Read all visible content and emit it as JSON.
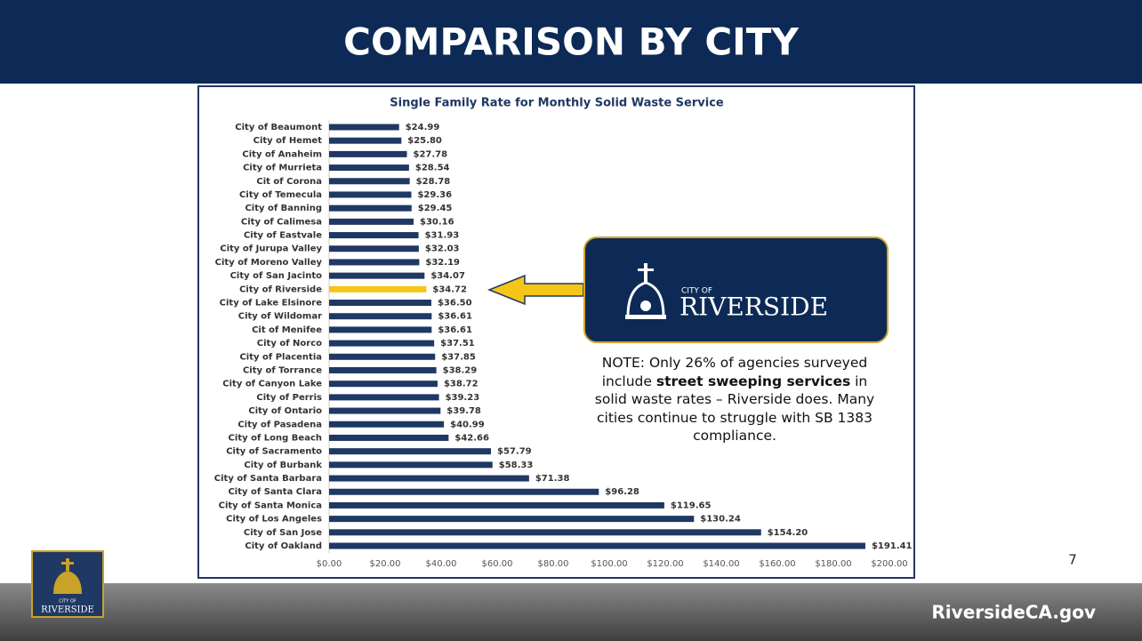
{
  "header": {
    "title": "COMPARISON BY CITY"
  },
  "chart_data": {
    "type": "barh",
    "title": "Single Family Rate for Monthly Solid Waste Service",
    "categories": [
      "City of Beaumont",
      "City of Hemet",
      "City of Anaheim",
      "City of Murrieta",
      "Cit of Corona",
      "City of Temecula",
      "City of Banning",
      "City of Calimesa",
      "City of Eastvale",
      "City of Jurupa Valley",
      "City of Moreno Valley",
      "City of San Jacinto",
      "City of Riverside",
      "City of Lake Elsinore",
      "City of Wildomar",
      "Cit of Menifee",
      "City of Norco",
      "City of Placentia",
      "City of Torrance",
      "City of Canyon Lake",
      "City of Perris",
      "City of Ontario",
      "City of Pasadena",
      "City of Long Beach",
      "City of Sacramento",
      "City of Burbank",
      "City of Santa Barbara",
      "City of Santa Clara",
      "City of Santa Monica",
      "City of Los Angeles",
      "City of San Jose",
      "City of Oakland"
    ],
    "values": [
      24.99,
      25.8,
      27.78,
      28.54,
      28.78,
      29.36,
      29.45,
      30.16,
      31.93,
      32.03,
      32.19,
      34.07,
      34.72,
      36.5,
      36.61,
      36.61,
      37.51,
      37.85,
      38.29,
      38.72,
      39.23,
      39.78,
      40.99,
      42.66,
      57.79,
      58.33,
      71.38,
      96.28,
      119.65,
      130.24,
      154.2,
      191.41
    ],
    "value_labels": [
      "$24.99",
      "$25.80",
      "$27.78",
      "$28.54",
      "$28.78",
      "$29.36",
      "$29.45",
      "$30.16",
      "$31.93",
      "$32.03",
      "$32.19",
      "$34.07",
      "$34.72",
      "$36.50",
      "$36.61",
      "$36.61",
      "$37.51",
      "$37.85",
      "$38.29",
      "$38.72",
      "$39.23",
      "$39.78",
      "$40.99",
      "$42.66",
      "$57.79",
      "$58.33",
      "$71.38",
      "$96.28",
      "$119.65",
      "$130.24",
      "$154.20",
      "$191.41"
    ],
    "colors": [
      "#1f3864",
      "#1f3864",
      "#1f3864",
      "#1f3864",
      "#1f3864",
      "#1f3864",
      "#1f3864",
      "#1f3864",
      "#1f3864",
      "#1f3864",
      "#1f3864",
      "#1f3864",
      "#f5c518",
      "#1f3864",
      "#1f3864",
      "#1f3864",
      "#1f3864",
      "#1f3864",
      "#1f3864",
      "#1f3864",
      "#1f3864",
      "#1f3864",
      "#1f3864",
      "#1f3864",
      "#1f3864",
      "#1f3864",
      "#1f3864",
      "#1f3864",
      "#1f3864",
      "#1f3864",
      "#1f3864",
      "#1f3864"
    ],
    "xlim": [
      0,
      200
    ],
    "xticks": [
      {
        "value": 0,
        "label": "$0.00"
      },
      {
        "value": 20,
        "label": "$20.00"
      },
      {
        "value": 40,
        "label": "$40.00"
      },
      {
        "value": 60,
        "label": "$60.00"
      },
      {
        "value": 80,
        "label": "$80.00"
      },
      {
        "value": 100,
        "label": "$100.00"
      },
      {
        "value": 120,
        "label": "$120.00"
      },
      {
        "value": 140,
        "label": "$140.00"
      },
      {
        "value": 160,
        "label": "$160.00"
      },
      {
        "value": 180,
        "label": "$180.00"
      },
      {
        "value": 200,
        "label": "$200.00"
      }
    ],
    "grid": false
  },
  "callout": {
    "logo_small": "CITY OF",
    "logo_name": "RIVERSIDE"
  },
  "note": [
    "NOTE: Only 26% of agencies surveyed include ",
    "street sweeping services",
    " in solid waste rates – Riverside does. Many cities continue to struggle with SB 1383 compliance."
  ],
  "page_number": "7",
  "footer": {
    "url": "RiversideCA.gov"
  }
}
